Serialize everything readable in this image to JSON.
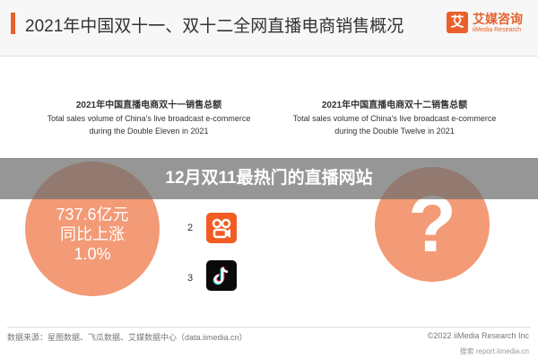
{
  "header": {
    "title": "2021年中国双十一、双十二全网直播电商销售概况",
    "logo_mark": "艾",
    "logo_name": "艾媒咨询",
    "logo_sub": "iiMedia Research"
  },
  "panels": {
    "left": {
      "title_cn": "2021年中国直播电商双十一销售总额",
      "title_en_1": "Total sales volume of China's live broadcast e-commerce",
      "title_en_2": "during the Double Eleven in 2021"
    },
    "right": {
      "title_cn": "2021年中国直播电商双十二销售总额",
      "title_en_1": "Total sales volume of China's live broadcast e-commerce",
      "title_en_2": "during the Double Twelve in 2021"
    }
  },
  "banner": {
    "text": "12月双11最热门的直播网站"
  },
  "ranking": [
    {
      "rank": "2",
      "icon": "kuaishou-icon"
    },
    {
      "rank": "3",
      "icon": "tiktok-icon"
    }
  ],
  "chart_data": [
    {
      "type": "table",
      "title": "2021年中国直播电商双十一销售总额",
      "values": [
        "737.6亿元",
        "同比上涨",
        "1.0%"
      ]
    },
    {
      "type": "table",
      "title": "2021年中国直播电商双十二销售总额",
      "values": [
        "?"
      ]
    }
  ],
  "footer": {
    "source": "数据来源：星图数据、飞瓜数据、艾媒数据中心（data.iimedia.cn）",
    "copyright": "©2022  iiMedia Research Inc",
    "search": "搜索 report.iimedia.cn"
  },
  "colors": {
    "accent": "#e8612c",
    "circle": "#f39a76",
    "kuaishou": "#f25b22",
    "tiktok": "#0a0a0a"
  }
}
